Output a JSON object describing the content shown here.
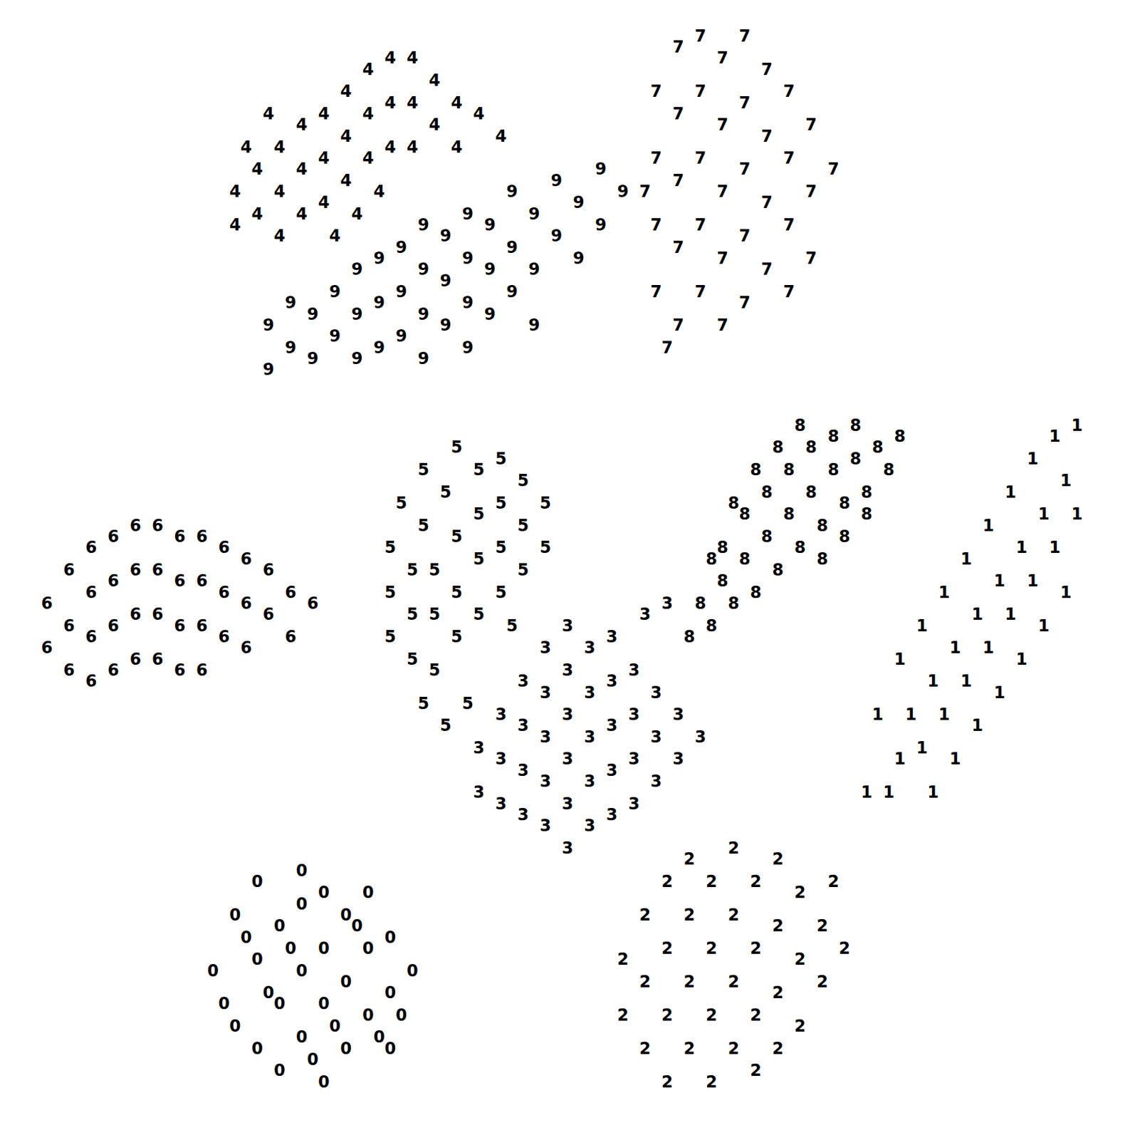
{
  "chart_data": {
    "type": "scatter",
    "marker": "text",
    "tick_labels": false,
    "grid": false,
    "xlim": [
      0,
      100
    ],
    "ylim": [
      0,
      100
    ],
    "series": [
      {
        "name": "0",
        "color": "#000000",
        "x": [
          18,
          20,
          20,
          22,
          22,
          22,
          24,
          24,
          24,
          26,
          26,
          26,
          26,
          28,
          28,
          28,
          28,
          30,
          30,
          30,
          32,
          32,
          32,
          34,
          34,
          34,
          36,
          19,
          21,
          23,
          25,
          27,
          29,
          31,
          33,
          35
        ],
        "values": [
          14,
          19,
          9,
          22,
          15,
          7,
          18,
          11,
          5,
          23,
          20,
          14,
          8,
          21,
          16,
          11,
          4,
          19,
          13,
          7,
          21,
          16,
          10,
          17,
          12,
          7,
          14,
          11,
          17,
          12,
          16,
          6,
          9,
          18,
          8,
          10
        ]
      },
      {
        "name": "1",
        "color": "#000000",
        "x": [
          96,
          94,
          95,
          92,
          93,
          90,
          91,
          88,
          89,
          86,
          87,
          85,
          84,
          83,
          82,
          81,
          80,
          80,
          79,
          82,
          84,
          86,
          88,
          90,
          92,
          94,
          96,
          78,
          83,
          85,
          87,
          89,
          91,
          93,
          95,
          77
        ],
        "values": [
          63,
          62,
          58,
          60,
          55,
          57,
          52,
          54,
          49,
          51,
          46,
          43,
          48,
          40,
          45,
          37,
          42,
          33,
          30,
          34,
          37,
          40,
          43,
          46,
          49,
          52,
          55,
          37,
          30,
          33,
          36,
          39,
          42,
          45,
          48,
          30
        ]
      },
      {
        "name": "2",
        "color": "#000000",
        "x": [
          55,
          55,
          57,
          57,
          57,
          59,
          59,
          59,
          59,
          61,
          61,
          61,
          61,
          63,
          63,
          63,
          63,
          65,
          65,
          65,
          65,
          67,
          67,
          67,
          67,
          69,
          69,
          69,
          69,
          71,
          71,
          71,
          73,
          73,
          75,
          74
        ],
        "values": [
          15,
          10,
          19,
          13,
          7,
          22,
          16,
          10,
          4,
          24,
          19,
          13,
          7,
          22,
          16,
          10,
          4,
          25,
          19,
          13,
          7,
          22,
          16,
          10,
          5,
          24,
          18,
          12,
          7,
          21,
          15,
          9,
          18,
          13,
          16,
          22
        ]
      },
      {
        "name": "3",
        "color": "#000000",
        "x": [
          42,
          42,
          44,
          44,
          44,
          46,
          46,
          46,
          46,
          48,
          48,
          48,
          48,
          48,
          50,
          50,
          50,
          50,
          50,
          50,
          52,
          52,
          52,
          52,
          52,
          54,
          54,
          54,
          54,
          54,
          56,
          56,
          56,
          56,
          58,
          58,
          58,
          60,
          60,
          62,
          57,
          59
        ],
        "values": [
          34,
          30,
          37,
          33,
          29,
          40,
          36,
          32,
          28,
          43,
          39,
          35,
          31,
          27,
          45,
          41,
          37,
          33,
          29,
          25,
          43,
          39,
          35,
          31,
          27,
          44,
          40,
          36,
          32,
          28,
          41,
          37,
          33,
          29,
          39,
          35,
          31,
          37,
          33,
          35,
          46,
          47
        ]
      },
      {
        "name": "4",
        "color": "#000000",
        "x": [
          20,
          20,
          22,
          22,
          24,
          24,
          24,
          26,
          26,
          26,
          28,
          28,
          28,
          30,
          30,
          30,
          32,
          32,
          32,
          34,
          34,
          34,
          36,
          36,
          36,
          38,
          38,
          40,
          40,
          42,
          44,
          29,
          31,
          33,
          21,
          23
        ],
        "values": [
          84,
          81,
          86,
          82,
          88,
          84,
          80,
          90,
          86,
          82,
          91,
          87,
          83,
          93,
          89,
          85,
          95,
          91,
          87,
          96,
          92,
          88,
          96,
          92,
          88,
          94,
          90,
          92,
          88,
          91,
          89,
          80,
          82,
          84,
          88,
          91
        ]
      },
      {
        "name": "5",
        "color": "#000000",
        "x": [
          34,
          34,
          34,
          35,
          36,
          36,
          36,
          37,
          37,
          38,
          38,
          38,
          39,
          40,
          40,
          40,
          40,
          41,
          42,
          42,
          42,
          42,
          44,
          44,
          44,
          44,
          46,
          46,
          46,
          48,
          48,
          37,
          39,
          45
        ],
        "values": [
          52,
          48,
          44,
          56,
          50,
          46,
          42,
          59,
          54,
          50,
          46,
          41,
          57,
          61,
          53,
          48,
          44,
          38,
          59,
          55,
          51,
          46,
          60,
          56,
          52,
          48,
          58,
          54,
          50,
          56,
          52,
          38,
          36,
          45
        ]
      },
      {
        "name": "6",
        "color": "#000000",
        "x": [
          3,
          3,
          5,
          5,
          5,
          7,
          7,
          7,
          7,
          9,
          9,
          9,
          9,
          11,
          11,
          11,
          11,
          13,
          13,
          13,
          13,
          15,
          15,
          15,
          15,
          17,
          17,
          17,
          17,
          19,
          19,
          19,
          21,
          21,
          21,
          23,
          23,
          25,
          25,
          27
        ],
        "values": [
          47,
          43,
          50,
          45,
          41,
          52,
          48,
          44,
          40,
          53,
          49,
          45,
          41,
          54,
          50,
          46,
          42,
          54,
          50,
          46,
          42,
          53,
          49,
          45,
          41,
          53,
          49,
          45,
          41,
          52,
          48,
          44,
          51,
          47,
          43,
          50,
          46,
          48,
          44,
          47
        ]
      },
      {
        "name": "7",
        "color": "#000000",
        "x": [
          58,
          58,
          58,
          58,
          60,
          60,
          60,
          60,
          60,
          62,
          62,
          62,
          62,
          62,
          64,
          64,
          64,
          64,
          64,
          66,
          66,
          66,
          66,
          66,
          68,
          68,
          68,
          68,
          70,
          70,
          70,
          70,
          72,
          72,
          72,
          74,
          57,
          59
        ],
        "values": [
          93,
          87,
          81,
          75,
          97,
          91,
          85,
          79,
          72,
          98,
          93,
          87,
          81,
          75,
          96,
          90,
          84,
          78,
          72,
          98,
          92,
          86,
          80,
          74,
          95,
          89,
          83,
          77,
          93,
          87,
          81,
          75,
          90,
          84,
          78,
          86,
          84,
          70
        ]
      },
      {
        "name": "8",
        "color": "#000000",
        "x": [
          61,
          62,
          63,
          64,
          64,
          65,
          66,
          66,
          67,
          68,
          68,
          69,
          70,
          70,
          71,
          72,
          72,
          73,
          74,
          74,
          75,
          76,
          76,
          77,
          78,
          79,
          80,
          67,
          69,
          71,
          73,
          75,
          77,
          63,
          65
        ],
        "values": [
          44,
          47,
          45,
          49,
          52,
          47,
          51,
          55,
          48,
          53,
          57,
          50,
          55,
          59,
          52,
          57,
          61,
          54,
          59,
          62,
          56,
          60,
          63,
          57,
          61,
          59,
          62,
          59,
          61,
          63,
          51,
          53,
          55,
          51,
          56
        ]
      },
      {
        "name": "9",
        "color": "#000000",
        "x": [
          23,
          23,
          25,
          25,
          27,
          27,
          29,
          29,
          31,
          31,
          31,
          33,
          33,
          33,
          35,
          35,
          35,
          37,
          37,
          37,
          37,
          39,
          39,
          39,
          41,
          41,
          41,
          41,
          43,
          43,
          43,
          45,
          45,
          45,
          47,
          47,
          47,
          49,
          49,
          51,
          51,
          53,
          53,
          55
        ],
        "values": [
          68,
          72,
          70,
          74,
          69,
          73,
          71,
          75,
          69,
          73,
          77,
          70,
          74,
          78,
          71,
          75,
          79,
          69,
          73,
          77,
          81,
          72,
          76,
          80,
          70,
          74,
          78,
          82,
          73,
          77,
          81,
          75,
          79,
          84,
          72,
          77,
          82,
          80,
          85,
          78,
          83,
          81,
          86,
          84
        ]
      }
    ]
  }
}
